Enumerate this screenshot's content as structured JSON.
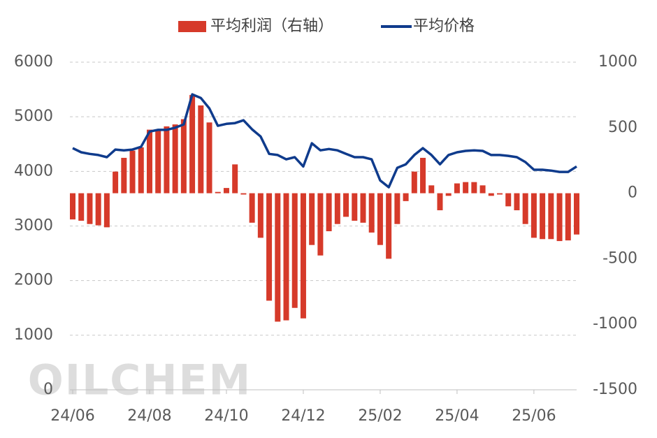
{
  "chart_data": {
    "type": "combo",
    "watermark": "OILCHEM",
    "categories": [
      "24/06",
      null,
      null,
      null,
      null,
      null,
      null,
      null,
      null,
      "24/08",
      null,
      null,
      null,
      null,
      null,
      null,
      null,
      null,
      "24/10",
      null,
      null,
      null,
      null,
      null,
      null,
      null,
      null,
      "24/12",
      null,
      null,
      null,
      null,
      null,
      null,
      null,
      null,
      "25/02",
      null,
      null,
      null,
      null,
      null,
      null,
      null,
      null,
      "25/04",
      null,
      null,
      null,
      null,
      null,
      null,
      null,
      null,
      "25/06",
      null,
      null,
      null,
      null,
      null
    ],
    "series": [
      {
        "name": "平均利润（右轴）",
        "type": "bar",
        "axis": "y2",
        "color": "#d63a2a",
        "values": [
          -200,
          -210,
          -235,
          -245,
          -260,
          165,
          270,
          325,
          350,
          485,
          485,
          510,
          525,
          565,
          750,
          670,
          540,
          10,
          40,
          220,
          -10,
          -225,
          -340,
          -820,
          -980,
          -970,
          -875,
          -955,
          -395,
          -475,
          -290,
          -235,
          -180,
          -210,
          -225,
          -300,
          -395,
          -500,
          -235,
          -60,
          165,
          270,
          60,
          -130,
          -20,
          75,
          85,
          85,
          60,
          -20,
          -10,
          -100,
          -130,
          -235,
          -340,
          -350,
          -350,
          -365,
          -360,
          -315
        ]
      },
      {
        "name": "平均价格",
        "type": "line",
        "color": "#0f3b8c",
        "values": [
          4425,
          4350,
          4320,
          4300,
          4260,
          4400,
          4385,
          4400,
          4450,
          4730,
          4760,
          4760,
          4800,
          4860,
          5410,
          5345,
          5155,
          4835,
          4870,
          4885,
          4935,
          4770,
          4640,
          4320,
          4300,
          4220,
          4260,
          4090,
          4515,
          4385,
          4410,
          4385,
          4320,
          4260,
          4260,
          4220,
          3835,
          3710,
          4065,
          4130,
          4300,
          4425,
          4300,
          4130,
          4300,
          4350,
          4375,
          4385,
          4375,
          4300,
          4300,
          4285,
          4260,
          4170,
          4030,
          4030,
          4015,
          3990,
          3990,
          4090
        ]
      }
    ],
    "ylim": [
      0,
      6000
    ],
    "yticks": [
      0,
      1000,
      2000,
      3000,
      4000,
      5000,
      6000
    ],
    "y2lim": [
      -1500,
      1000
    ],
    "y2ticks": [
      -1500,
      -1000,
      -500,
      0,
      500,
      1000
    ],
    "grid": true
  }
}
